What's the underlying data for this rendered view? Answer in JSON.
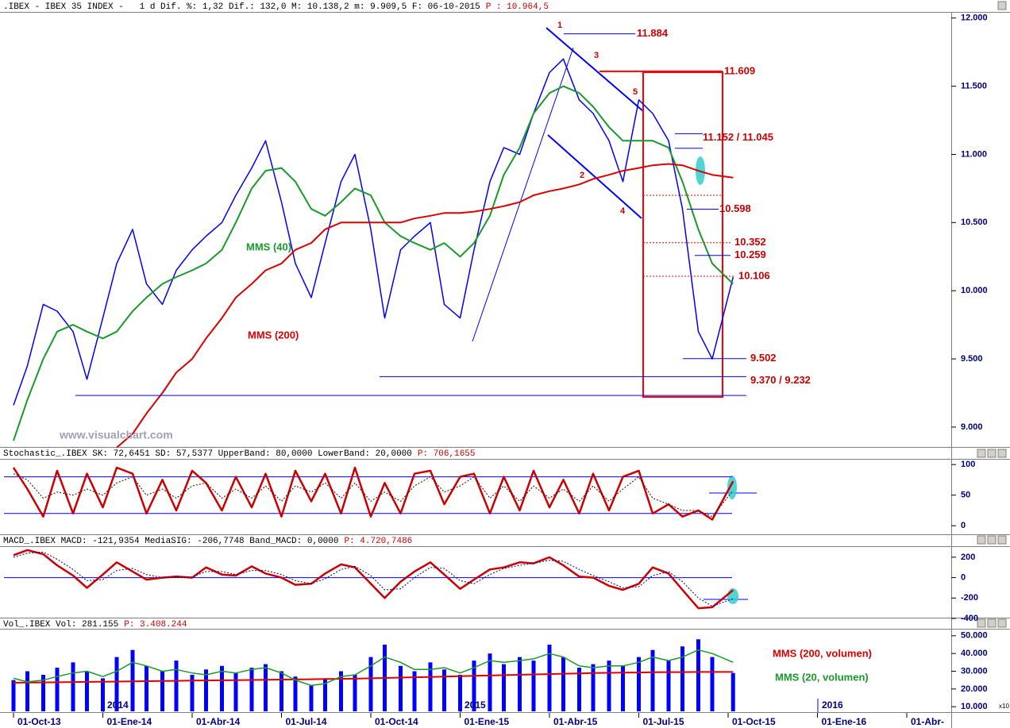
{
  "chart_data": [
    {
      "type": "line",
      "title": ".IBEX - IBEX 35 INDEX -   1 d Dif. %: 1,32 Dif.: 132,0 M: 10.138,2 m: 9.909,5 F: 06-10-2015",
      "subtitle": "P : 10.964,5",
      "watermark": "www.visualchart.com",
      "x": [
        "01-Oct-13",
        "15-Oct-13",
        "01-Nov-13",
        "15-Nov-13",
        "01-Dic-13",
        "15-Dic-13",
        "01-Ene-14",
        "15-Ene-14",
        "01-Feb-14",
        "15-Feb-14",
        "01-Mar-14",
        "15-Mar-14",
        "01-Abr-14",
        "15-Abr-14",
        "01-May-14",
        "15-May-14",
        "01-Jun-14",
        "15-Jun-14",
        "01-Jul-14",
        "15-Jul-14",
        "01-Ago-14",
        "15-Ago-14",
        "01-Sep-14",
        "15-Sep-14",
        "01-Oct-14",
        "15-Oct-14",
        "01-Nov-14",
        "15-Nov-14",
        "01-Dic-14",
        "15-Dic-14",
        "01-Ene-15",
        "15-Ene-15",
        "01-Feb-15",
        "15-Feb-15",
        "01-Mar-15",
        "15-Mar-15",
        "01-Abr-15",
        "15-Abr-15",
        "01-May-15",
        "15-May-15",
        "01-Jun-15",
        "15-Jun-15",
        "01-Jul-15",
        "15-Jul-15",
        "01-Ago-15",
        "15-Ago-15",
        "01-Sep-15",
        "15-Sep-15",
        "06-Oct-15"
      ],
      "series": [
        {
          "color": "#0000ff",
          "width": 1.5,
          "values": [
            9160,
            9450,
            9900,
            9850,
            9700,
            9350,
            9800,
            10200,
            10450,
            10050,
            9900,
            10150,
            10300,
            10400,
            10500,
            10700,
            10900,
            11100,
            10650,
            10200,
            9950,
            10350,
            10800,
            11000,
            10450,
            9800,
            10300,
            10400,
            10500,
            9900,
            9800,
            10300,
            10800,
            11050,
            11000,
            11300,
            11600,
            11700,
            11400,
            11300,
            11100,
            10800,
            11400,
            11300,
            11100,
            10600,
            9700,
            9500,
            10100
          ]
        },
        {
          "name": "MMS (40)",
          "color": "#1a9a2a",
          "width": 2,
          "values": [
            8900,
            9200,
            9500,
            9700,
            9750,
            9700,
            9650,
            9700,
            9850,
            9950,
            10050,
            10100,
            10150,
            10200,
            10300,
            10500,
            10750,
            10880,
            10900,
            10800,
            10600,
            10550,
            10650,
            10750,
            10700,
            10500,
            10400,
            10350,
            10300,
            10350,
            10250,
            10350,
            10550,
            10850,
            11050,
            11300,
            11450,
            11500,
            11450,
            11350,
            11200,
            11100,
            11100,
            11100,
            11050,
            10800,
            10450,
            10200,
            10050
          ]
        },
        {
          "name": "MMS (200)",
          "color": "#dd0000",
          "width": 2,
          "values": [
            null,
            null,
            null,
            null,
            null,
            null,
            null,
            8850,
            8950,
            9100,
            9250,
            9400,
            9500,
            9650,
            9800,
            9950,
            10050,
            10150,
            10200,
            10300,
            10350,
            10450,
            10500,
            10500,
            10500,
            10500,
            10500,
            10530,
            10550,
            10570,
            10570,
            10580,
            10600,
            10620,
            10650,
            10700,
            10730,
            10750,
            10780,
            10820,
            10850,
            10880,
            10900,
            10920,
            10930,
            10920,
            10880,
            10850,
            10830
          ]
        }
      ],
      "levels": [
        {
          "values": [
            11884
          ],
          "label": "11.884",
          "color": "#0000ff"
        },
        {
          "values": [
            11609
          ],
          "label": "11.609",
          "color": "#ff0000"
        },
        {
          "values": [
            11152,
            11045
          ],
          "label": "11.152 / 11.045",
          "color": "#0000ff"
        },
        {
          "values": [
            10598
          ],
          "label": "10.598",
          "color": "#0000ff"
        },
        {
          "values": [
            10352
          ],
          "label": "10.352",
          "color": "#ff0000",
          "style": "dotted"
        },
        {
          "values": [
            10259
          ],
          "label": "10.259",
          "color": "#0000ff"
        },
        {
          "values": [
            10106
          ],
          "label": "10.106",
          "color": "#ff0000",
          "style": "dotted"
        },
        {
          "values": [
            9502
          ],
          "label": "9.502",
          "color": "#0000ff"
        },
        {
          "values": [
            9370,
            9232
          ],
          "label": "9.370 / 9.232",
          "color": "#0000ff"
        }
      ],
      "annotations": [
        "1",
        "2",
        "3",
        "4",
        "5"
      ],
      "ylim": [
        8860,
        12045
      ],
      "yticks": [
        {
          "value": 12000,
          "label": "12.000"
        },
        {
          "value": 11500,
          "label": "11.500"
        },
        {
          "value": 11000,
          "label": "11.000"
        },
        {
          "value": 10500,
          "label": "10.500"
        },
        {
          "value": 10000,
          "label": "10.000"
        },
        {
          "value": 9500,
          "label": "9.500"
        },
        {
          "value": 9000,
          "label": "9.000"
        }
      ]
    },
    {
      "type": "line",
      "title": "Stochastic_.IBEX SK: 72,6451 SD: 57,5377 UpperBand: 80,0000 LowerBand: 20,0000",
      "subtitle": "P: 706,1655",
      "x": [
        "01-Oct-13",
        "15-Oct-13",
        "01-Nov-13",
        "15-Nov-13",
        "01-Dic-13",
        "15-Dic-13",
        "01-Ene-14",
        "15-Ene-14",
        "01-Feb-14",
        "15-Feb-14",
        "01-Mar-14",
        "15-Mar-14",
        "01-Abr-14",
        "15-Abr-14",
        "01-May-14",
        "15-May-14",
        "01-Jun-14",
        "15-Jun-14",
        "01-Jul-14",
        "15-Jul-14",
        "01-Ago-14",
        "15-Ago-14",
        "01-Sep-14",
        "15-Sep-14",
        "01-Oct-14",
        "15-Oct-14",
        "01-Nov-14",
        "15-Nov-14",
        "01-Dic-14",
        "15-Dic-14",
        "01-Ene-15",
        "15-Ene-15",
        "01-Feb-15",
        "15-Feb-15",
        "01-Mar-15",
        "15-Mar-15",
        "01-Abr-15",
        "15-Abr-15",
        "01-May-15",
        "15-May-15",
        "01-Jun-15",
        "15-Jun-15",
        "01-Jul-15",
        "15-Jul-15",
        "01-Ago-15",
        "15-Ago-15",
        "01-Sep-15",
        "15-Sep-15",
        "06-Oct-15"
      ],
      "series": [
        {
          "color": "#cc0000",
          "width": 2.5,
          "values": [
            95,
            60,
            15,
            90,
            20,
            85,
            30,
            95,
            85,
            20,
            75,
            25,
            90,
            70,
            25,
            80,
            30,
            85,
            15,
            90,
            40,
            85,
            20,
            95,
            15,
            70,
            20,
            85,
            90,
            35,
            80,
            85,
            20,
            80,
            25,
            90,
            30,
            75,
            20,
            85,
            25,
            80,
            90,
            20,
            35,
            15,
            25,
            10,
            72.6451
          ]
        },
        {
          "color": "#400000",
          "width": 1,
          "style": "dotted",
          "values": [
            85,
            75,
            45,
            55,
            50,
            60,
            50,
            70,
            80,
            50,
            60,
            45,
            65,
            70,
            45,
            60,
            45,
            65,
            40,
            65,
            55,
            70,
            45,
            70,
            40,
            55,
            40,
            65,
            80,
            55,
            65,
            80,
            45,
            65,
            40,
            65,
            45,
            60,
            40,
            65,
            40,
            60,
            80,
            45,
            35,
            25,
            25,
            15,
            57.5377
          ]
        }
      ],
      "bands": [
        80,
        20
      ],
      "ylim": [
        -14,
        108
      ],
      "yticks": [
        100,
        50,
        0
      ]
    },
    {
      "type": "line",
      "title": "MACD_.IBEX MACD: -121,9354 MediaSIG: -206,7748 Band_MACD: 0,0000",
      "subtitle": "P: 4.720,7486",
      "x": [
        "01-Oct-13",
        "15-Oct-13",
        "01-Nov-13",
        "15-Nov-13",
        "01-Dic-13",
        "15-Dic-13",
        "01-Ene-14",
        "15-Ene-14",
        "01-Feb-14",
        "15-Feb-14",
        "01-Mar-14",
        "15-Mar-14",
        "01-Abr-14",
        "15-Abr-14",
        "01-May-14",
        "15-May-14",
        "01-Jun-14",
        "15-Jun-14",
        "01-Jul-14",
        "15-Jul-14",
        "01-Ago-14",
        "15-Ago-14",
        "01-Sep-14",
        "15-Sep-14",
        "01-Oct-14",
        "15-Oct-14",
        "01-Nov-14",
        "15-Nov-14",
        "01-Dic-14",
        "15-Dic-14",
        "01-Ene-15",
        "15-Ene-15",
        "01-Feb-15",
        "15-Feb-15",
        "01-Mar-15",
        "15-Mar-15",
        "01-Abr-15",
        "15-Abr-15",
        "01-May-15",
        "15-May-15",
        "01-Jun-15",
        "15-Jun-15",
        "01-Jul-15",
        "15-Jul-15",
        "01-Ago-15",
        "15-Ago-15",
        "01-Sep-15",
        "15-Sep-15",
        "06-Oct-15"
      ],
      "series": [
        {
          "color": "#cc0000",
          "width": 2.5,
          "values": [
            220,
            270,
            230,
            120,
            20,
            -100,
            30,
            150,
            60,
            -20,
            0,
            10,
            0,
            100,
            30,
            20,
            110,
            40,
            0,
            -70,
            -60,
            40,
            130,
            100,
            -60,
            -200,
            -40,
            60,
            150,
            30,
            -110,
            -20,
            80,
            100,
            150,
            140,
            200,
            120,
            10,
            0,
            -80,
            -120,
            -60,
            100,
            40,
            -120,
            -300,
            -290,
            -121.9354
          ]
        },
        {
          "color": "#000080",
          "width": 1,
          "style": "dotted",
          "values": [
            200,
            240,
            250,
            180,
            80,
            -30,
            -20,
            70,
            90,
            30,
            0,
            5,
            5,
            60,
            60,
            30,
            70,
            70,
            30,
            -30,
            -60,
            -10,
            80,
            110,
            20,
            -120,
            -110,
            0,
            100,
            90,
            -30,
            -60,
            30,
            90,
            120,
            140,
            170,
            160,
            80,
            20,
            -40,
            -100,
            -90,
            20,
            60,
            -40,
            -200,
            -280,
            -206.7748
          ]
        }
      ],
      "bands": [
        0
      ],
      "ylim": [
        -400,
        300
      ],
      "yticks": [
        200,
        0,
        -200,
        -400
      ]
    },
    {
      "type": "bar",
      "title": "Vol_.IBEX Vol: 281.155",
      "subtitle": "P: 3.408.244",
      "x": [
        "01-Oct-13",
        "15-Oct-13",
        "01-Nov-13",
        "15-Nov-13",
        "01-Dic-13",
        "15-Dic-13",
        "01-Ene-14",
        "15-Ene-14",
        "01-Feb-14",
        "15-Feb-14",
        "01-Mar-14",
        "15-Mar-14",
        "01-Abr-14",
        "15-Abr-14",
        "01-May-14",
        "15-May-14",
        "01-Jun-14",
        "15-Jun-14",
        "01-Jul-14",
        "15-Jul-14",
        "01-Ago-14",
        "15-Ago-14",
        "01-Sep-14",
        "15-Sep-14",
        "01-Oct-14",
        "15-Oct-14",
        "01-Nov-14",
        "15-Nov-14",
        "01-Dic-14",
        "15-Dic-14",
        "01-Ene-15",
        "15-Ene-15",
        "01-Feb-15",
        "15-Feb-15",
        "01-Mar-15",
        "15-Mar-15",
        "01-Abr-15",
        "15-Abr-15",
        "01-May-15",
        "15-May-15",
        "01-Jun-15",
        "15-Jun-15",
        "01-Jul-15",
        "15-Jul-15",
        "01-Ago-15",
        "15-Ago-15",
        "01-Sep-15",
        "15-Sep-15",
        "06-Oct-15"
      ],
      "values": [
        25000,
        30000,
        28000,
        32000,
        35000,
        30000,
        26000,
        38000,
        42000,
        33000,
        30000,
        36000,
        28000,
        31000,
        33000,
        29000,
        32000,
        34000,
        30000,
        27000,
        22000,
        26000,
        30000,
        28000,
        38000,
        45000,
        33000,
        30000,
        35000,
        31000,
        28000,
        36000,
        40000,
        34000,
        38000,
        36000,
        45000,
        38000,
        32000,
        34000,
        36000,
        33000,
        38000,
        42000,
        36000,
        44000,
        48000,
        38000,
        29000
      ],
      "color": "#0000ff",
      "series": [
        {
          "name": "MMS (200, volumen)",
          "color": "#dd0000",
          "width": 2,
          "values": [
            23500,
            23600,
            23700,
            23800,
            23900,
            24000,
            24100,
            24200,
            24300,
            24400,
            24500,
            24600,
            24700,
            24800,
            24900,
            25000,
            25100,
            25200,
            25300,
            25400,
            25500,
            25600,
            25700,
            25800,
            26000,
            26200,
            26400,
            26600,
            26800,
            27000,
            27200,
            27400,
            27600,
            27800,
            28000,
            28200,
            28400,
            28600,
            28800,
            29000,
            29100,
            29200,
            29300,
            29400,
            29500,
            29500,
            29600,
            29600,
            29600
          ]
        },
        {
          "name": "MMS (20, volumen)",
          "color": "#1a9a2a",
          "width": 1.5,
          "values": [
            26000,
            24000,
            25000,
            27000,
            29000,
            30000,
            27000,
            30000,
            35000,
            33000,
            30000,
            31000,
            29000,
            28000,
            30000,
            29000,
            31000,
            32000,
            29000,
            25000,
            22000,
            23000,
            27000,
            28000,
            33000,
            38000,
            35000,
            31000,
            31000,
            32000,
            29000,
            32000,
            36000,
            35000,
            36000,
            37000,
            40000,
            38000,
            33000,
            32000,
            33000,
            33000,
            35000,
            38000,
            36000,
            38000,
            42000,
            40000,
            35000
          ]
        }
      ],
      "year_labels": [
        "2014",
        "2015",
        "2016"
      ],
      "multiplier": "x10",
      "ylim": [
        7400,
        53500
      ],
      "yticks": [
        {
          "value": 50000,
          "label": "50.000"
        },
        {
          "value": 40000,
          "label": "40.000"
        },
        {
          "value": 30000,
          "label": "30.000"
        },
        {
          "value": 20000,
          "label": "20.000"
        },
        {
          "value": 10000,
          "label": "10.000"
        }
      ],
      "xticks": [
        "01-Oct-13",
        "01-Ene-14",
        "01-Abr-14",
        "01-Jul-14",
        "01-Oct-14",
        "01-Ene-15",
        "01-Abr-15",
        "01-Jul-15",
        "01-Oct-15",
        "01-Ene-16",
        {
          "value": "01-Abr-16",
          "label": "01-Abr-"
        }
      ]
    }
  ]
}
